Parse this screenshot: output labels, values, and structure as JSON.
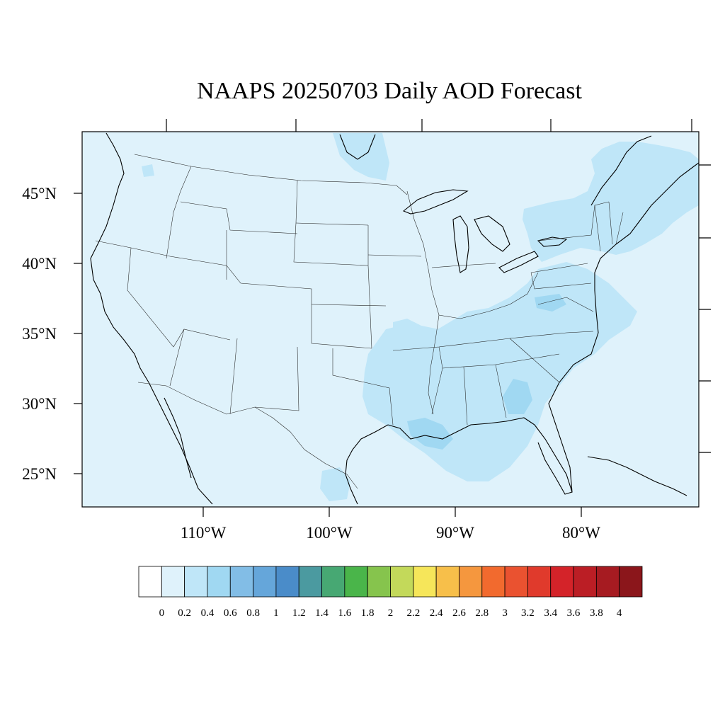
{
  "title": "NAAPS 20250703 Daily AOD Forecast",
  "lat_labels": [
    "45°N",
    "40°N",
    "35°N",
    "30°N",
    "25°N"
  ],
  "lon_labels": [
    "110°W",
    "100°W",
    "90°W",
    "80°W"
  ],
  "colorbar": {
    "labels": [
      "0",
      "0.2",
      "0.4",
      "0.6",
      "0.8",
      "1",
      "1.2",
      "1.4",
      "1.6",
      "1.8",
      "2",
      "2.2",
      "2.4",
      "2.6",
      "2.8",
      "3",
      "3.2",
      "3.4",
      "3.6",
      "3.8",
      "4"
    ],
    "colors": [
      "#ffffff",
      "#dff2fb",
      "#bfe6f8",
      "#a0d8f2",
      "#82bde6",
      "#65a6da",
      "#4a8cc9",
      "#4b9aa0",
      "#47a873",
      "#4ab54a",
      "#86c44d",
      "#c3d95a",
      "#f6e65a",
      "#f7bf4a",
      "#f5973e",
      "#f26a2e",
      "#ea5230",
      "#e03a2c",
      "#d42329",
      "#bb1e25",
      "#a61b21",
      "#8b161b"
    ]
  },
  "map": {
    "background_color": "#dff2fb",
    "elevated_color": "#bfe6f8",
    "high_color": "#a0d8f2"
  }
}
